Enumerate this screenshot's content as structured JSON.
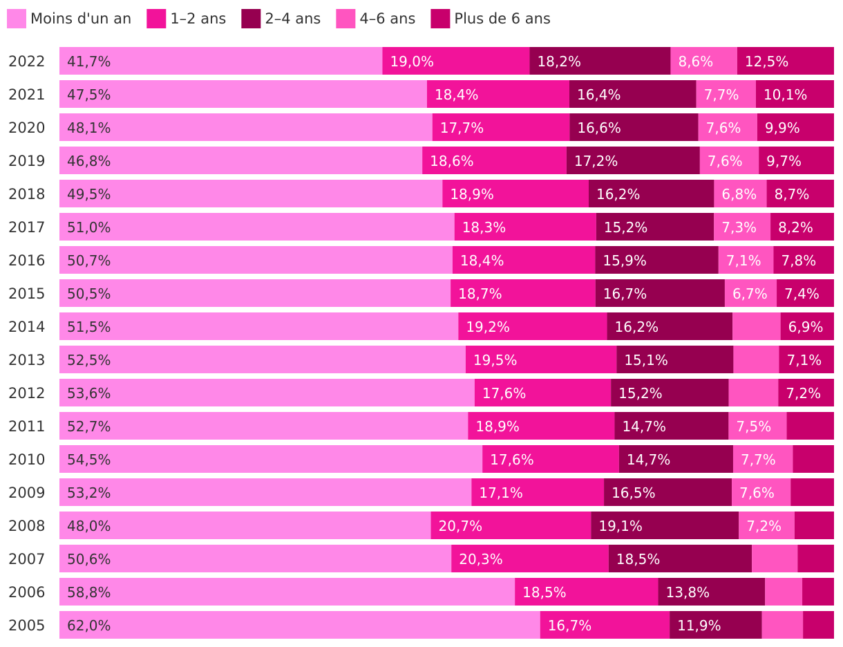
{
  "chart_data": {
    "type": "bar",
    "orientation": "horizontal",
    "stacked": true,
    "legend_position": "top-left",
    "categories": [
      "2022",
      "2021",
      "2020",
      "2019",
      "2018",
      "2017",
      "2016",
      "2015",
      "2014",
      "2013",
      "2012",
      "2011",
      "2010",
      "2009",
      "2008",
      "2007",
      "2006",
      "2005"
    ],
    "series": [
      {
        "name": "Moins d'un an",
        "color": "#ff88e8",
        "text_color": "#333333",
        "values": [
          41.7,
          47.5,
          48.1,
          46.8,
          49.5,
          51.0,
          50.7,
          50.5,
          51.5,
          52.5,
          53.6,
          52.7,
          54.5,
          53.2,
          48.0,
          50.6,
          58.8,
          62.0
        ],
        "labels": [
          "41,7%",
          "47,5%",
          "48,1%",
          "46,8%",
          "49,5%",
          "51,0%",
          "50,7%",
          "50,5%",
          "51,5%",
          "52,5%",
          "53,6%",
          "52,7%",
          "54,5%",
          "53,2%",
          "48,0%",
          "50,6%",
          "58,8%",
          "62,0%"
        ]
      },
      {
        "name": "1–2 ans",
        "color": "#f2139a",
        "text_color": "#ffffff",
        "values": [
          19.0,
          18.4,
          17.7,
          18.6,
          18.9,
          18.3,
          18.4,
          18.7,
          19.2,
          19.5,
          17.6,
          18.9,
          17.6,
          17.1,
          20.7,
          20.3,
          18.5,
          16.7
        ],
        "labels": [
          "19,0%",
          "18,4%",
          "17,7%",
          "18,6%",
          "18,9%",
          "18,3%",
          "18,4%",
          "18,7%",
          "19,2%",
          "19,5%",
          "17,6%",
          "18,9%",
          "17,6%",
          "17,1%",
          "20,7%",
          "20,3%",
          "18,5%",
          "16,7%"
        ]
      },
      {
        "name": "2–4 ans",
        "color": "#960050",
        "text_color": "#ffffff",
        "values": [
          18.2,
          16.4,
          16.6,
          17.2,
          16.2,
          15.2,
          15.9,
          16.7,
          16.2,
          15.1,
          15.2,
          14.7,
          14.7,
          16.5,
          19.1,
          18.5,
          13.8,
          11.9
        ],
        "labels": [
          "18,2%",
          "16,4%",
          "16,6%",
          "17,2%",
          "16,2%",
          "15,2%",
          "15,9%",
          "16,7%",
          "16,2%",
          "15,1%",
          "15,2%",
          "14,7%",
          "14,7%",
          "16,5%",
          "19,1%",
          "18,5%",
          "13,8%",
          "11,9%"
        ]
      },
      {
        "name": "4–6 ans",
        "color": "#ff55c0",
        "text_color": "#ffffff",
        "values": [
          8.6,
          7.7,
          7.6,
          7.6,
          6.8,
          7.3,
          7.1,
          6.7,
          6.2,
          5.9,
          6.4,
          7.5,
          7.7,
          7.6,
          7.2,
          5.9,
          4.8,
          5.3
        ],
        "labels": [
          "8,6%",
          "7,7%",
          "7,6%",
          "7,6%",
          "6,8%",
          "7,3%",
          "7,1%",
          "6,7%",
          "",
          "",
          "",
          "7,5%",
          "7,7%",
          "7,6%",
          "7,2%",
          "",
          "",
          ""
        ]
      },
      {
        "name": "Plus de 6 ans",
        "color": "#c8006c",
        "text_color": "#ffffff",
        "values": [
          12.5,
          10.1,
          9.9,
          9.7,
          8.7,
          8.2,
          7.8,
          7.4,
          6.9,
          7.1,
          7.2,
          6.1,
          5.3,
          5.6,
          5.1,
          4.7,
          4.1,
          4.0
        ],
        "labels": [
          "12,5%",
          "10,1%",
          "9,9%",
          "9,7%",
          "8,7%",
          "8,2%",
          "7,8%",
          "7,4%",
          "6,9%",
          "7,1%",
          "7,2%",
          "",
          "",
          "",
          "",
          "",
          "",
          ""
        ]
      }
    ]
  }
}
